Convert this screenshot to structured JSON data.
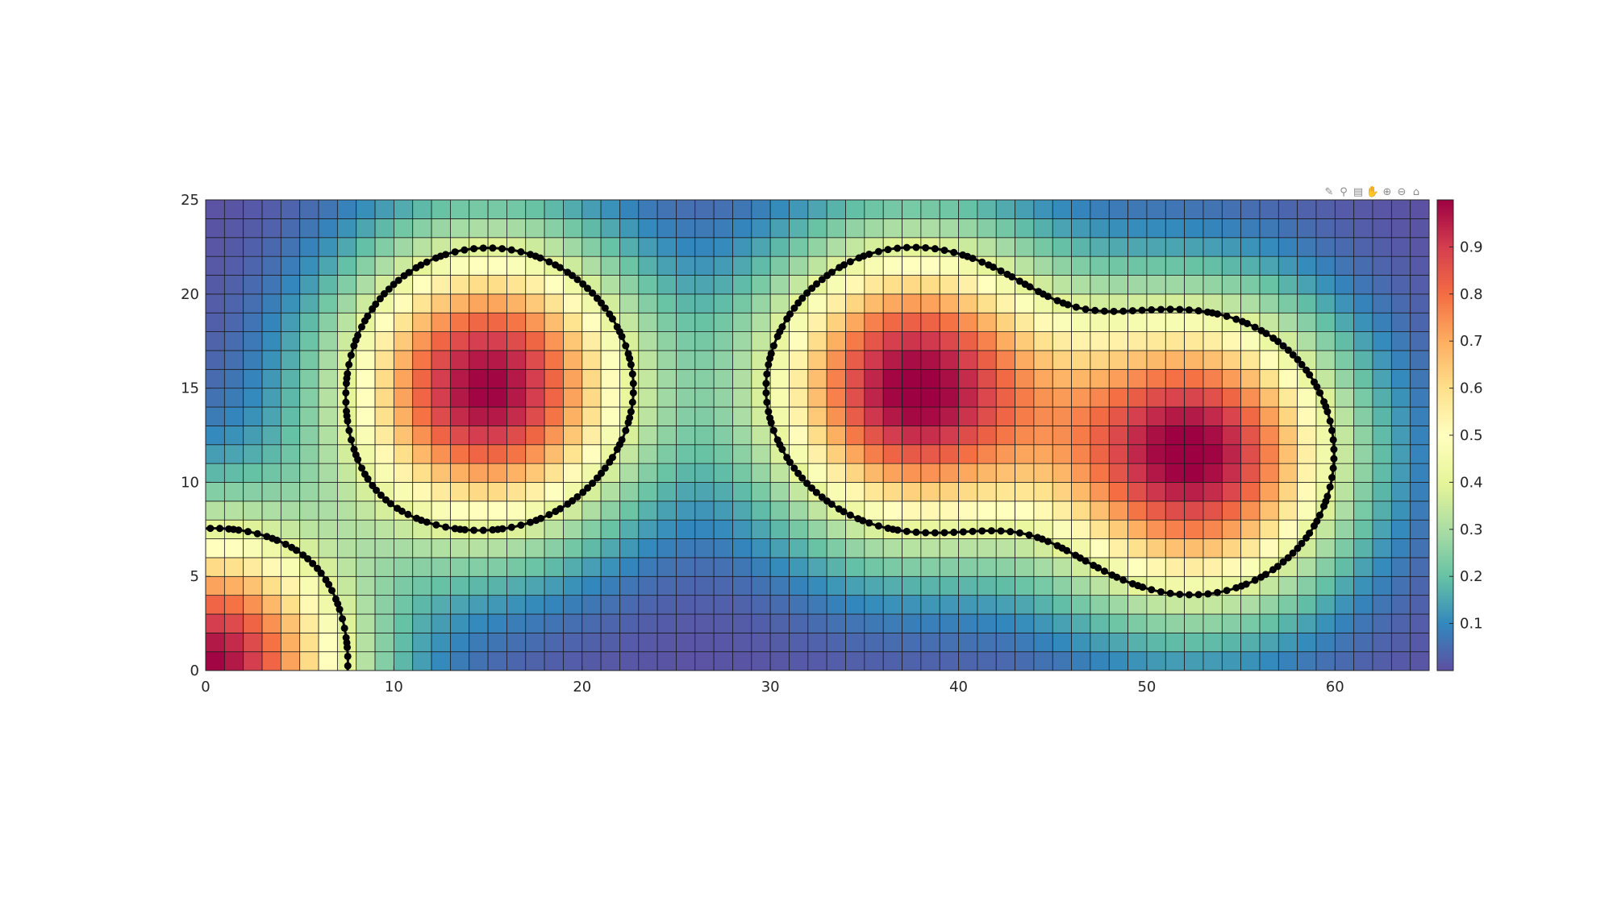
{
  "toolbar": {
    "icons": [
      "brush-icon",
      "datatip-icon",
      "restore-view-icon",
      "pan-icon",
      "zoom-in-icon",
      "zoom-out-icon",
      "home-icon"
    ]
  },
  "chart_data": {
    "type": "heatmap",
    "title": "",
    "xlabel": "",
    "ylabel": "",
    "xlim": [
      0,
      65
    ],
    "ylim": [
      0,
      25
    ],
    "x_ticks": [
      0,
      10,
      20,
      30,
      40,
      50,
      60
    ],
    "y_ticks": [
      0,
      5,
      10,
      15,
      20,
      25
    ],
    "grid_cell_size": 1,
    "colormap": "spectral",
    "colormap_stops": [
      "#5e4fa2",
      "#3288bd",
      "#66c2a5",
      "#abdda4",
      "#e6f598",
      "#ffffbf",
      "#fee08b",
      "#fdae61",
      "#f46d43",
      "#d53e4f",
      "#9e0142"
    ],
    "clim": [
      0,
      1
    ],
    "colorbar_ticks": [
      0.1,
      0.2,
      0.3,
      0.4,
      0.5,
      0.6,
      0.7,
      0.8,
      0.9
    ],
    "field": {
      "description": "sum of radial bumps",
      "peaks": [
        {
          "x": 0,
          "y": 0,
          "amplitude": 1.0
        },
        {
          "x": 15,
          "y": 15,
          "amplitude": 1.0
        },
        {
          "x": 37.5,
          "y": 15,
          "amplitude": 1.0
        },
        {
          "x": 52.5,
          "y": 11.5,
          "amplitude": 1.0
        }
      ]
    },
    "contour_level": 0.4,
    "contour_style": "black line with dot markers"
  }
}
